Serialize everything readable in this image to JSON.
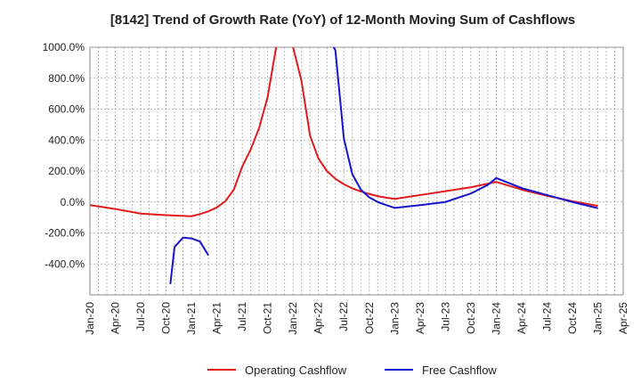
{
  "chart_data": {
    "type": "line",
    "title": "[8142]  Trend of Growth Rate (YoY) of 12-Month Moving Sum of Cashflows",
    "xlabel": "",
    "ylabel": "",
    "ylim": [
      -600,
      1000
    ],
    "grid": true,
    "legend_position": "bottom",
    "y_ticks": [
      "1000.0%",
      "800.0%",
      "600.0%",
      "400.0%",
      "200.0%",
      "0.0%",
      "-200.0%",
      "-400.0%"
    ],
    "y_tick_values": [
      1000,
      800,
      600,
      400,
      200,
      0,
      -200,
      -400
    ],
    "x_ticks": [
      "Jan-20",
      "Apr-20",
      "Jul-20",
      "Oct-20",
      "Jan-21",
      "Apr-21",
      "Jul-21",
      "Oct-21",
      "Jan-22",
      "Apr-22",
      "Jul-22",
      "Oct-22",
      "Jan-23",
      "Apr-23",
      "Jul-23",
      "Oct-23",
      "Jan-24",
      "Apr-24",
      "Jul-24",
      "Oct-24",
      "Jan-25",
      "Apr-25"
    ],
    "series": [
      {
        "name": "Operating Cashflow",
        "color": "#e31a1c",
        "points": [
          [
            "Jan-20",
            -20
          ],
          [
            "Apr-20",
            -45
          ],
          [
            "Jul-20",
            -75
          ],
          [
            "Oct-20",
            -85
          ],
          [
            "Jan-21",
            -92
          ],
          [
            "Feb-21",
            -78
          ],
          [
            "Mar-21",
            -60
          ],
          [
            "Apr-21",
            -35
          ],
          [
            "May-21",
            5
          ],
          [
            "Jun-21",
            80
          ],
          [
            "Jul-21",
            230
          ],
          [
            "Aug-21",
            340
          ],
          [
            "Sep-21",
            480
          ],
          [
            "Oct-21",
            680
          ],
          [
            "Nov-21",
            1000
          ],
          [
            "Nov-21b",
            1080
          ],
          [
            "Jan-22b",
            1080
          ],
          [
            "Jan-22",
            1000
          ],
          [
            "Feb-22",
            780
          ],
          [
            "Mar-22",
            430
          ],
          [
            "Apr-22",
            280
          ],
          [
            "May-22",
            200
          ],
          [
            "Jun-22",
            150
          ],
          [
            "Jul-22",
            115
          ],
          [
            "Aug-22",
            88
          ],
          [
            "Sep-22",
            68
          ],
          [
            "Oct-22",
            52
          ],
          [
            "Nov-22",
            38
          ],
          [
            "Dec-22",
            28
          ],
          [
            "Jan-23",
            20
          ],
          [
            "Apr-23",
            45
          ],
          [
            "Jul-23",
            70
          ],
          [
            "Oct-23",
            95
          ],
          [
            "Jan-24",
            130
          ],
          [
            "Apr-24",
            80
          ],
          [
            "Jul-24",
            40
          ],
          [
            "Oct-24",
            5
          ],
          [
            "Jan-25",
            -25
          ]
        ]
      },
      {
        "name": "Free Cashflow",
        "color": "#1515cc",
        "segments": [
          [
            [
              "Oct-20b",
              -530
            ],
            [
              "Nov-20",
              -290
            ],
            [
              "Dec-20",
              -230
            ],
            [
              "Jan-21",
              -235
            ],
            [
              "Feb-21",
              -255
            ],
            [
              "Mar-21",
              -345
            ]
          ],
          [
            [
              "May-22",
              1080
            ],
            [
              "Jun-22",
              980
            ],
            [
              "Jul-22",
              410
            ],
            [
              "Aug-22",
              180
            ],
            [
              "Sep-22",
              80
            ],
            [
              "Oct-22",
              30
            ],
            [
              "Nov-22",
              0
            ],
            [
              "Dec-22",
              -20
            ],
            [
              "Jan-23",
              -38
            ],
            [
              "Apr-23",
              -20
            ],
            [
              "Jul-23",
              0
            ],
            [
              "Oct-23",
              55
            ],
            [
              "Dec-23",
              110
            ],
            [
              "Jan-24",
              155
            ],
            [
              "Apr-24",
              90
            ],
            [
              "Jul-24",
              45
            ],
            [
              "Oct-24",
              0
            ],
            [
              "Jan-25",
              -40
            ]
          ]
        ]
      }
    ]
  }
}
